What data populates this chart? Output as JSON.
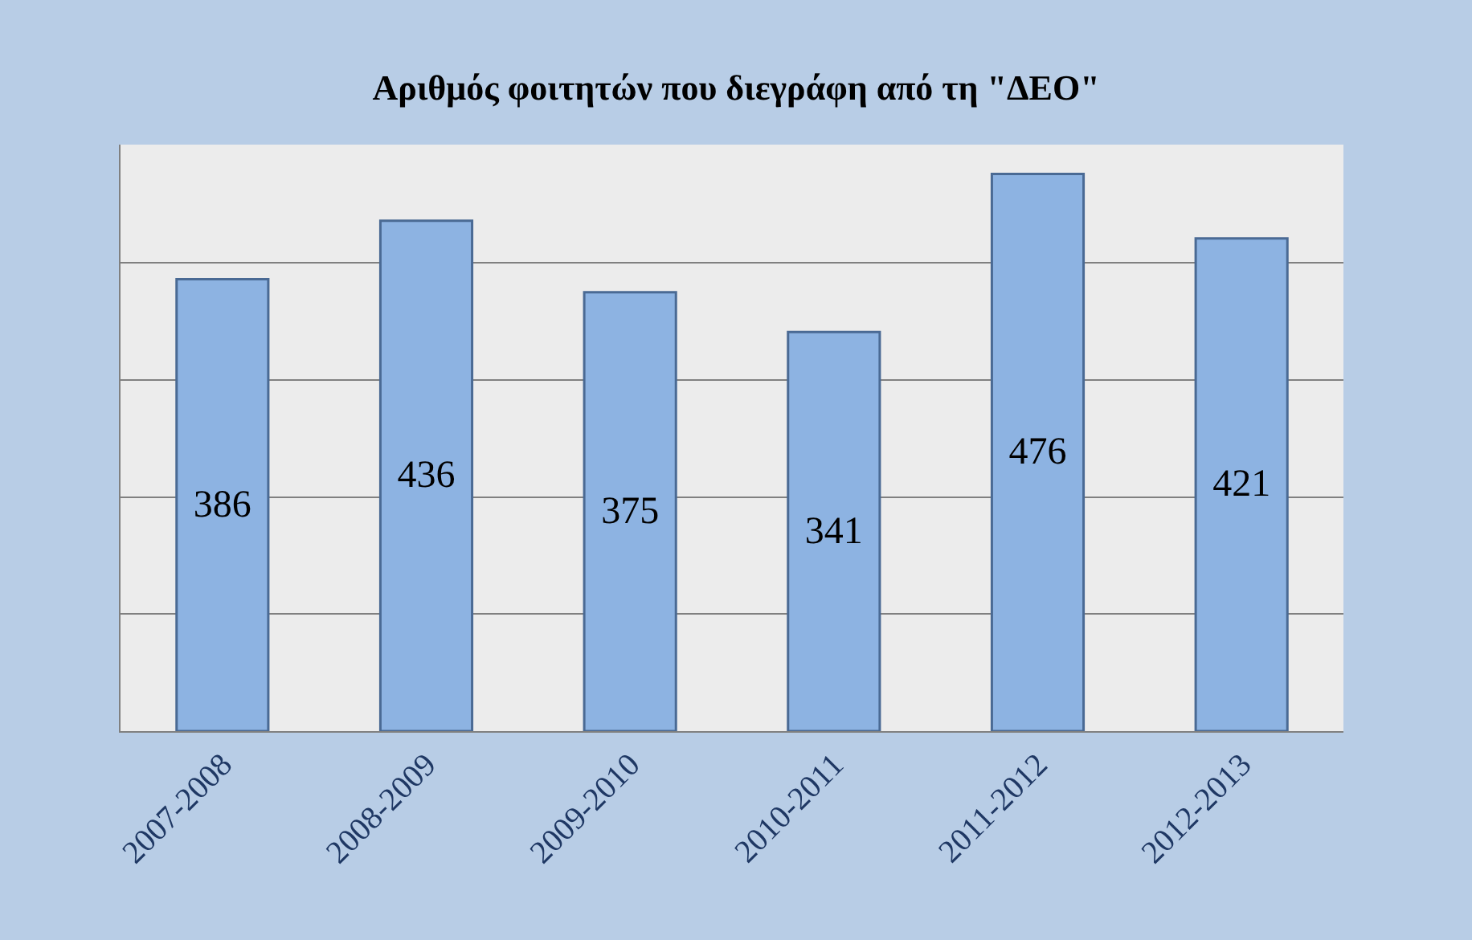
{
  "chart_data": {
    "type": "bar",
    "title": "Αριθμός φοιτητών που διεγράφη από τη \"ΔΕΟ\"",
    "categories": [
      "2007-2008",
      "2008-2009",
      "2009-2010",
      "2010-2011",
      "2011-2012",
      "2012-2013"
    ],
    "values": [
      386,
      436,
      375,
      341,
      476,
      421
    ],
    "color": "#8db3e2",
    "data_labels": true,
    "grid": "y",
    "tick_labels": "x"
  }
}
